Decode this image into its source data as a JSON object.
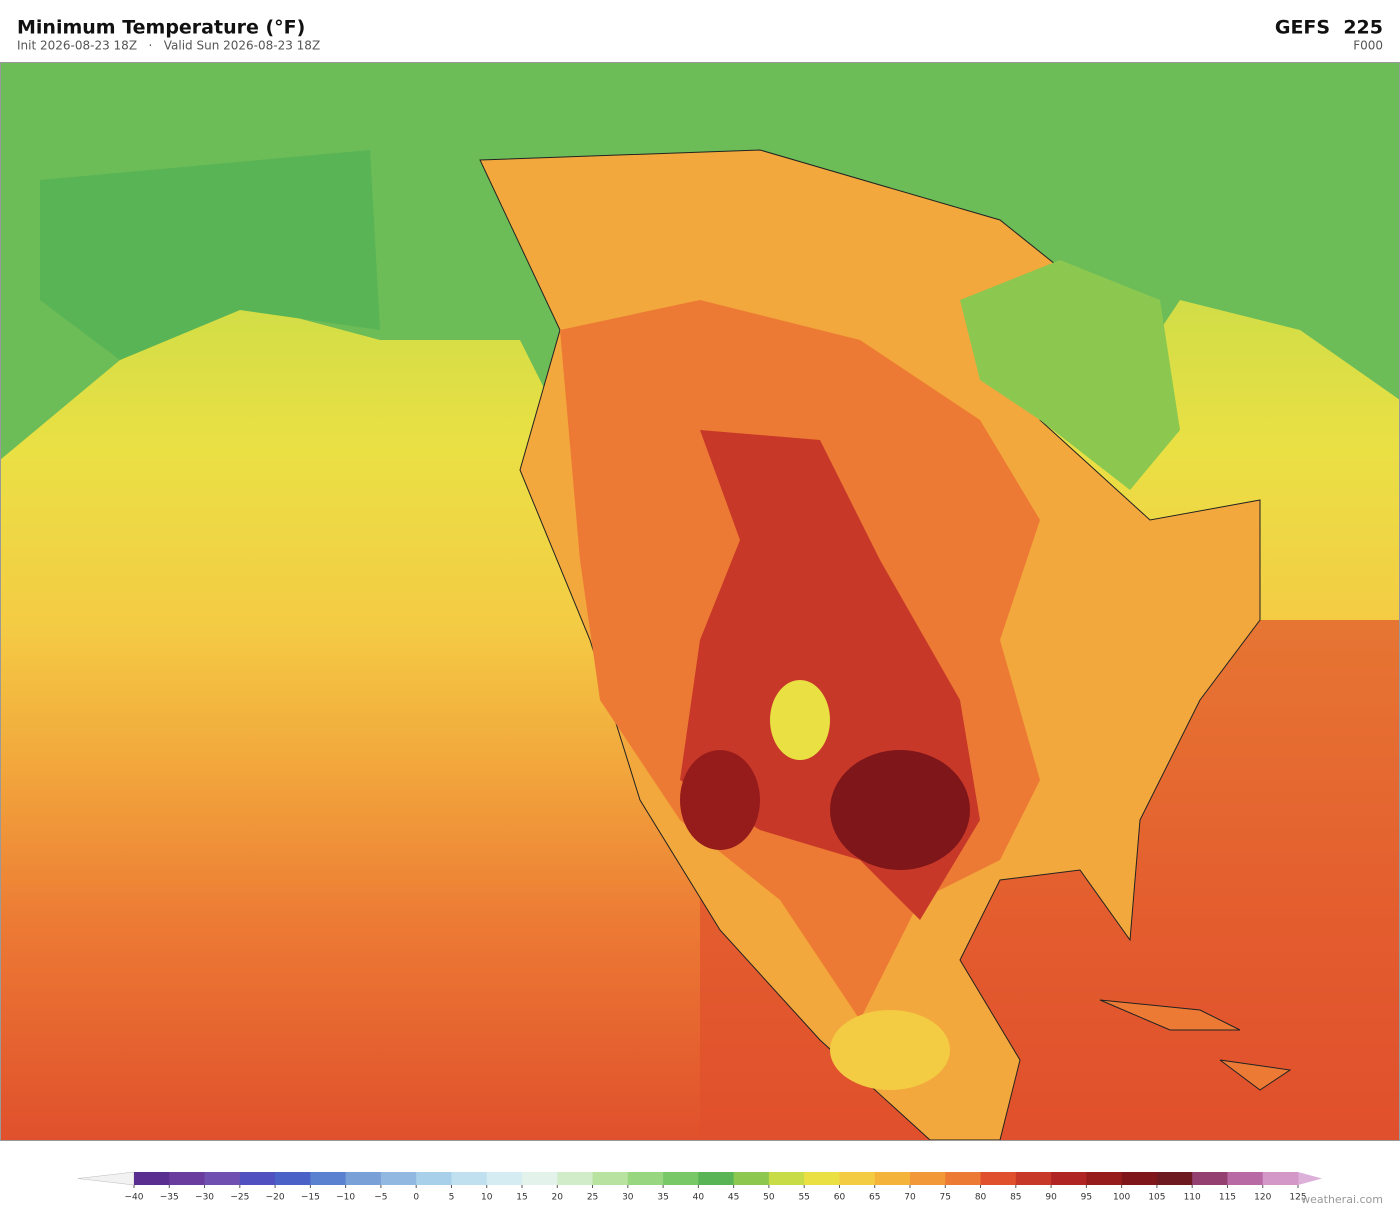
{
  "header": {
    "title": "Minimum Temperature  (°F)",
    "subtitle": "Init 2026-08-23 18Z   ·   Valid Sun 2026-08-23 18Z",
    "model": "GEFS  225",
    "forecast_hour": "F000"
  },
  "colorbar": {
    "ticks": [
      {
        "value": -40,
        "label": "−40"
      },
      {
        "value": -35,
        "label": "−35"
      },
      {
        "value": -30,
        "label": "−30"
      },
      {
        "value": -25,
        "label": "−25"
      },
      {
        "value": -20,
        "label": "−20"
      },
      {
        "value": -15,
        "label": "−15"
      },
      {
        "value": -10,
        "label": "−10"
      },
      {
        "value": -5,
        "label": "−5"
      },
      0,
      5,
      10,
      15,
      20,
      25,
      30,
      35,
      40,
      45,
      50,
      55,
      60,
      65,
      70,
      75,
      80,
      85,
      90,
      95,
      100,
      105,
      110,
      115,
      120,
      125
    ],
    "colors": [
      "#5a2d91",
      "#6a3c9e",
      "#6f50b0",
      "#5050c0",
      "#4a62c8",
      "#5a80d0",
      "#7aa0d8",
      "#90b8e0",
      "#a8d0ea",
      "#c0e0f0",
      "#d4ecf2",
      "#e4f2ec",
      "#d0ecc8",
      "#b8e2a0",
      "#98d680",
      "#78c868",
      "#58b454",
      "#8cc850",
      "#c8dc48",
      "#eae044",
      "#f4cc44",
      "#f4b43c",
      "#f29838",
      "#ec7a34",
      "#e0502c",
      "#c83828",
      "#b02424",
      "#961c1c",
      "#7e161a",
      "#6e1820",
      "#944070",
      "#b86aa4",
      "#d498c8"
    ],
    "under_color": "#f2f2f2",
    "over_color": "#dcb0d8"
  },
  "watermark": "weatherai.com"
}
